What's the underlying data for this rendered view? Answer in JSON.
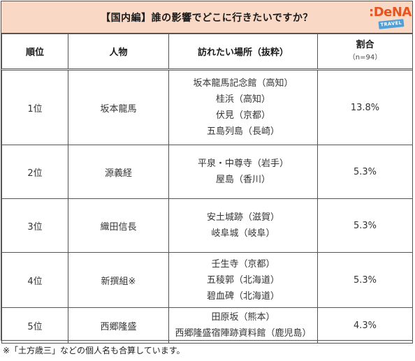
{
  "title": "【国内編】誰の影響でどこに行きたいですか？",
  "logo": {
    "main": ":DeNA",
    "sub": "TRAVEL"
  },
  "headers": {
    "rank": "順位",
    "person": "人物",
    "places": "訪れたい場所（抜粋）",
    "ratio": "割合",
    "ratio_sub": "（n=94）"
  },
  "rows": [
    {
      "rank": "1位",
      "person": "坂本龍馬",
      "places": [
        "坂本龍馬記念館（高知）",
        "桂浜（高知）",
        "伏見（京都）",
        "五島列島（長崎）"
      ],
      "ratio": "13.8%"
    },
    {
      "rank": "2位",
      "person": "源義経",
      "places": [
        "平泉・中尊寺（岩手）",
        "屋島（香川）"
      ],
      "ratio": "5.3%"
    },
    {
      "rank": "3位",
      "person": "織田信長",
      "places": [
        "安土城跡（滋賀）",
        "岐阜城（岐阜）"
      ],
      "ratio": "5.3%"
    },
    {
      "rank": "4位",
      "person": "新撰組※",
      "places": [
        "壬生寺（京都）",
        "五稜郭（北海道）",
        "碧血碑（北海道）"
      ],
      "ratio": "5.3%"
    },
    {
      "rank": "5位",
      "person": "西郷隆盛",
      "places": [
        "田原坂（熊本）",
        "西郷隆盛宿陣跡資料館（鹿児島）"
      ],
      "ratio": "4.3%"
    }
  ],
  "footnote": "※「土方歳三」などの個人名も合算しています。"
}
